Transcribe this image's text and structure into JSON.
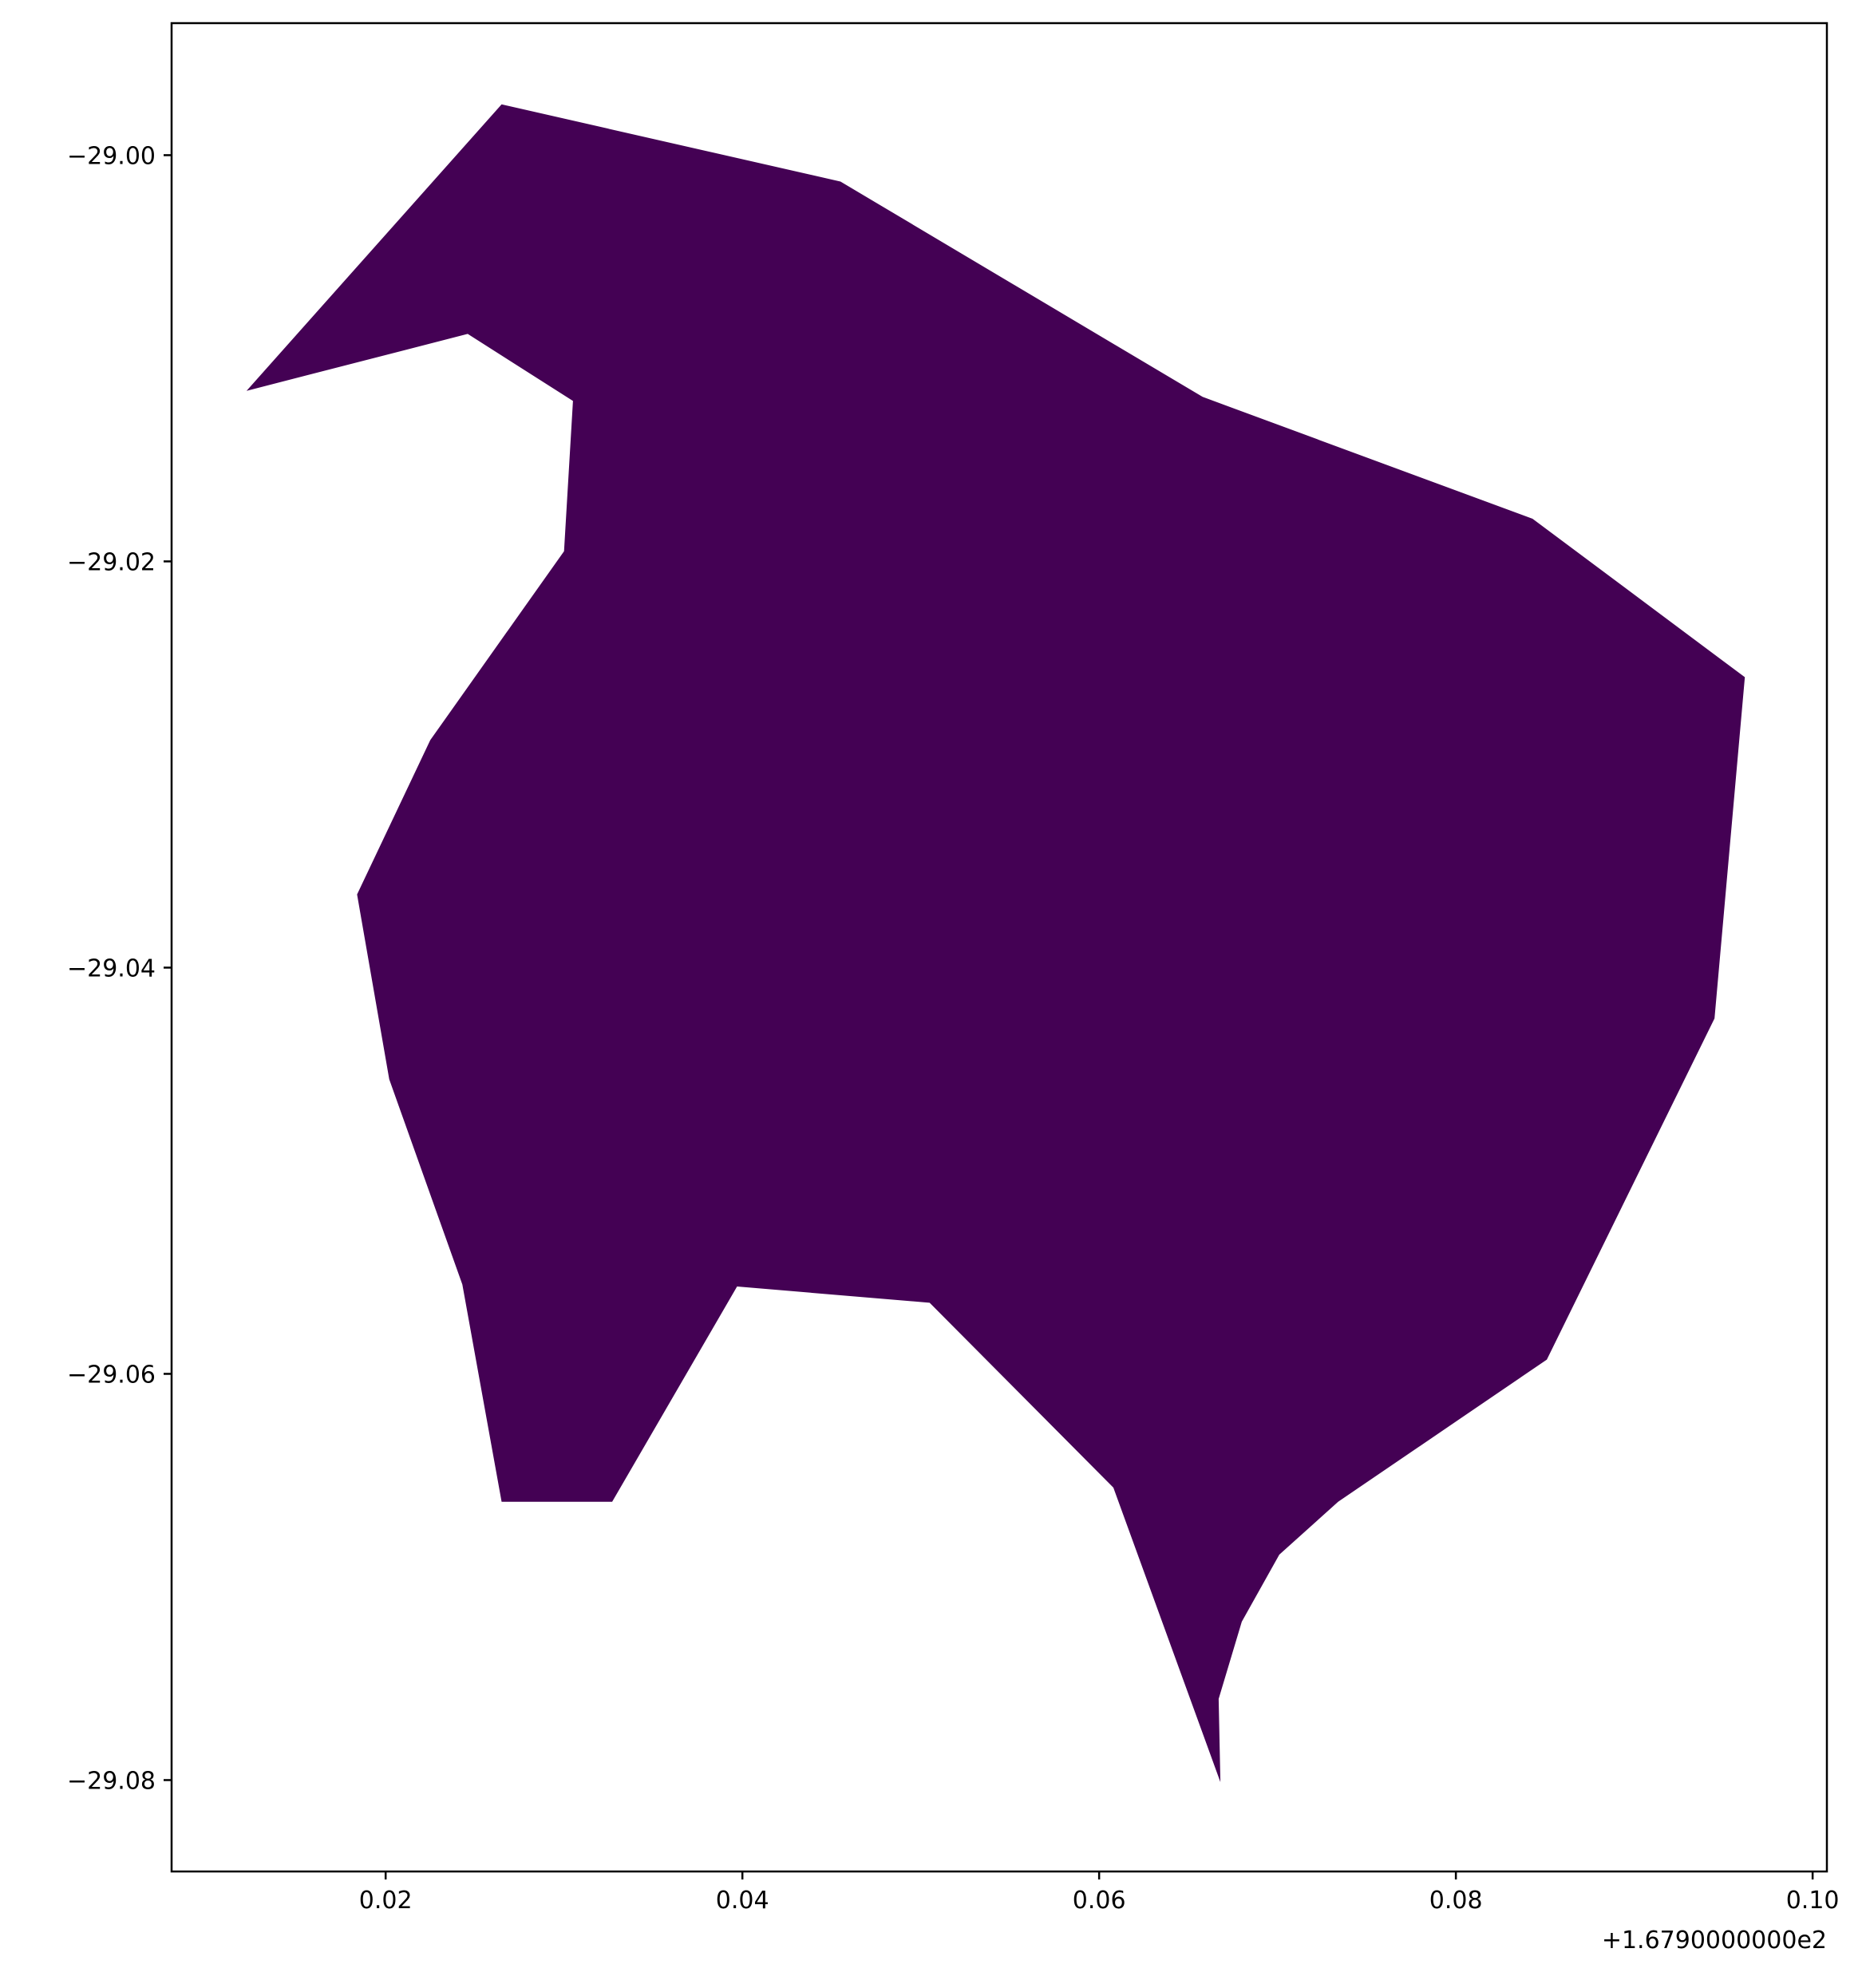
{
  "chart_data": {
    "type": "area",
    "title": "",
    "xlabel": "",
    "ylabel": "",
    "x_offset_label": "+1.6790000000e2",
    "xlim": [
      0.008,
      0.1008
    ],
    "ylim": [
      -29.0845,
      -28.9935
    ],
    "x_ticks": [
      {
        "value": 0.02,
        "label": "0.02"
      },
      {
        "value": 0.04,
        "label": "0.04"
      },
      {
        "value": 0.06,
        "label": "0.06"
      },
      {
        "value": 0.08,
        "label": "0.08"
      },
      {
        "value": 0.1,
        "label": "0.10"
      }
    ],
    "y_ticks": [
      {
        "value": -29.0,
        "label": "−29.00"
      },
      {
        "value": -29.02,
        "label": "−29.02"
      },
      {
        "value": -29.04,
        "label": "−29.04"
      },
      {
        "value": -29.06,
        "label": "−29.06"
      },
      {
        "value": -29.08,
        "label": "−29.08"
      }
    ],
    "grid": false,
    "polygon_color": "#440154",
    "polygon": [
      [
        0.0265,
        -28.9975
      ],
      [
        0.0455,
        -29.0013
      ],
      [
        0.0658,
        -29.0119
      ],
      [
        0.0843,
        -29.0179
      ],
      [
        0.0962,
        -29.0257
      ],
      [
        0.0945,
        -29.0425
      ],
      [
        0.0851,
        -29.0593
      ],
      [
        0.0734,
        -29.0663
      ],
      [
        0.0701,
        -29.0689
      ],
      [
        0.068,
        -29.0722
      ],
      [
        0.0667,
        -29.076
      ],
      [
        0.0668,
        -29.0801
      ],
      [
        0.0608,
        -29.0656
      ],
      [
        0.0505,
        -29.0565
      ],
      [
        0.0397,
        -29.0557
      ],
      [
        0.0327,
        -29.0663
      ],
      [
        0.0265,
        -29.0663
      ],
      [
        0.0243,
        -29.0556
      ],
      [
        0.0202,
        -29.0455
      ],
      [
        0.0184,
        -29.0364
      ],
      [
        0.0225,
        -29.0288
      ],
      [
        0.03,
        -29.0195
      ],
      [
        0.0305,
        -29.0121
      ],
      [
        0.0246,
        -29.0088
      ],
      [
        0.0122,
        -29.0116
      ],
      [
        0.0265,
        -28.9975
      ]
    ]
  }
}
